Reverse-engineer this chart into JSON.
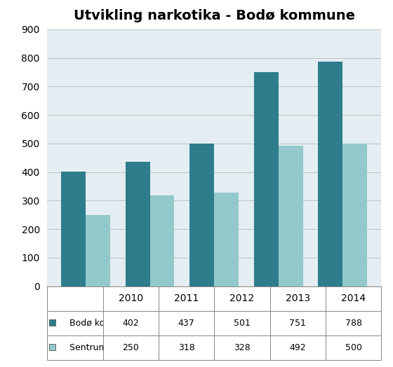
{
  "title": "Utvikling narkotika - Bodø kommune",
  "years": [
    "2010",
    "2011",
    "2012",
    "2013",
    "2014"
  ],
  "bodo_totalt": [
    402,
    437,
    501,
    751,
    788
  ],
  "sentrum": [
    250,
    318,
    328,
    492,
    500
  ],
  "color_bodo": "#2E7D8C",
  "color_sentrum": "#93C9CA",
  "background_plot": "#E4EEF2",
  "background_fig": "#FFFFFF",
  "ylim": [
    0,
    900
  ],
  "yticks": [
    0,
    100,
    200,
    300,
    400,
    500,
    600,
    700,
    800,
    900
  ],
  "legend_label_bodo": "Bodø kommune totalt",
  "legend_label_sentrum": "Sentrum",
  "table_row1": [
    402,
    437,
    501,
    751,
    788
  ],
  "table_row2": [
    250,
    318,
    328,
    492,
    500
  ],
  "grid_color": "#C0C0C0",
  "table_edge_color": "#888888"
}
